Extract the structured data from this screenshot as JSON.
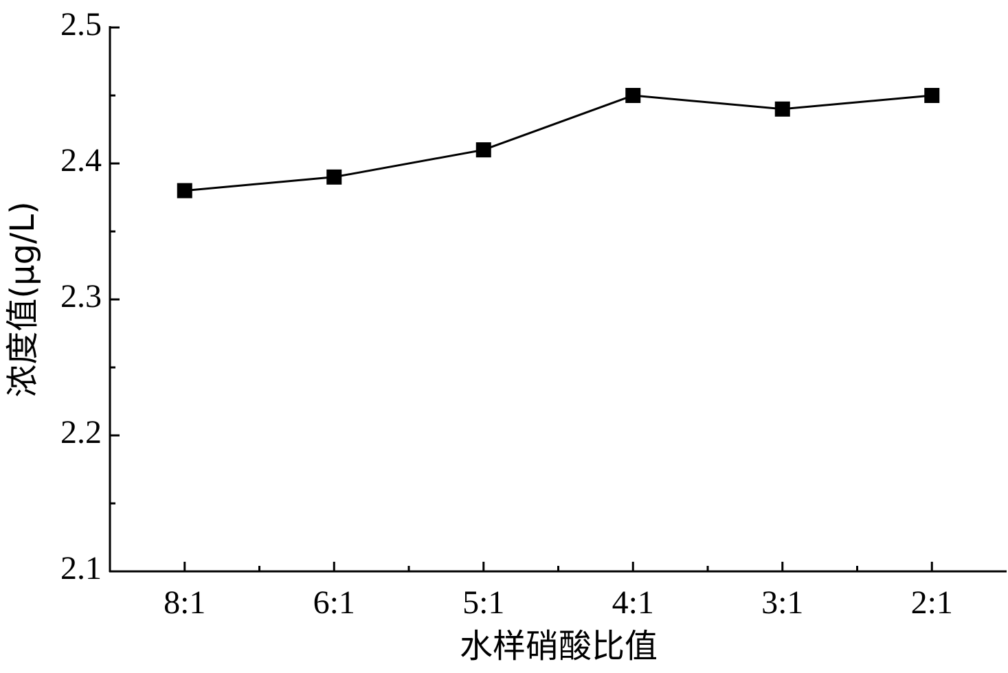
{
  "chart_data": {
    "type": "line",
    "x_label": "水样硝酸比值",
    "y_label": "浓度值(μg/L)",
    "categories": [
      "8:1",
      "6:1",
      "5:1",
      "4:1",
      "3:1",
      "2:1"
    ],
    "series": [
      {
        "name": null,
        "color": "#000000",
        "values": [
          2.38,
          2.39,
          2.41,
          2.45,
          2.44,
          2.45
        ]
      }
    ],
    "ylim": [
      2.1,
      2.5
    ],
    "yticks": [
      2.1,
      2.2,
      2.3,
      2.4,
      2.5
    ],
    "grid": false
  }
}
